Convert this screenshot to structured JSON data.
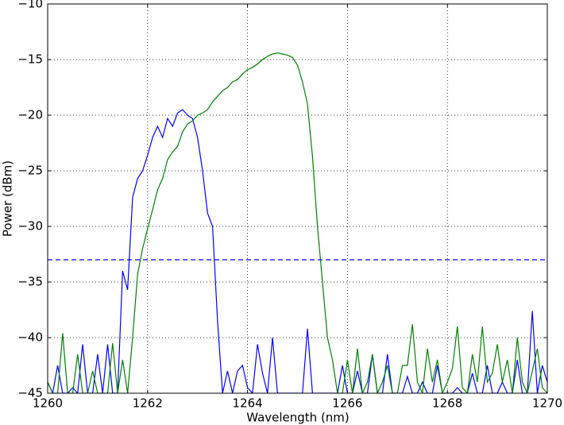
{
  "chart_data": {
    "type": "line",
    "xlabel": "Wavelength (nm)",
    "ylabel": "Power (dBm)",
    "x": [
      1260,
      1260.1,
      1260.2,
      1260.3,
      1260.4,
      1260.5,
      1260.6,
      1260.7,
      1260.8,
      1260.9,
      1261,
      1261.1,
      1261.2,
      1261.3,
      1261.4,
      1261.5,
      1261.6,
      1261.7,
      1261.8,
      1261.9,
      1262,
      1262.1,
      1262.2,
      1262.3,
      1262.4,
      1262.5,
      1262.6,
      1262.7,
      1262.8,
      1262.9,
      1263,
      1263.1,
      1263.2,
      1263.3,
      1263.4,
      1263.5,
      1263.6,
      1263.7,
      1263.8,
      1263.9,
      1264,
      1264.1,
      1264.2,
      1264.3,
      1264.4,
      1264.5,
      1264.6,
      1264.7,
      1264.8,
      1264.9,
      1265,
      1265.1,
      1265.2,
      1265.3,
      1265.4,
      1265.5,
      1265.6,
      1265.7,
      1265.8,
      1265.9,
      1266,
      1266.1,
      1266.2,
      1266.3,
      1266.4,
      1266.5,
      1266.6,
      1266.7,
      1266.8,
      1266.9,
      1267,
      1267.1,
      1267.2,
      1267.3,
      1267.4,
      1267.5,
      1267.6,
      1267.7,
      1267.8,
      1267.9,
      1268,
      1268.1,
      1268.2,
      1268.3,
      1268.4,
      1268.5,
      1268.6,
      1268.7,
      1268.8,
      1268.9,
      1269,
      1269.1,
      1269.2,
      1269.3,
      1269.4,
      1269.5,
      1269.6,
      1269.7,
      1269.8,
      1269.9,
      1270
    ],
    "series": [
      {
        "color": "#0000ff",
        "values": [
          -44,
          -45,
          -42.5,
          -45,
          -45,
          -44.5,
          -45,
          -40.6,
          -45,
          -45,
          -41.5,
          -45,
          -40.6,
          -45,
          -45,
          -34,
          -35.7,
          -27.4,
          -25.7,
          -25,
          -23.6,
          -22,
          -21,
          -22,
          -20.3,
          -21,
          -19.8,
          -19.5,
          -20,
          -20.3,
          -22,
          -25,
          -28.8,
          -30,
          -38.5,
          -45,
          -43,
          -45,
          -43,
          -42.5,
          -44.5,
          -45,
          -40.6,
          -43.2,
          -45,
          -40,
          -45,
          -45,
          -45,
          -45,
          -45,
          -45,
          -39.2,
          -45,
          -45,
          -45,
          -45,
          -45,
          -45,
          -42.5,
          -45,
          -45,
          -43,
          -45,
          -45,
          -41.5,
          -45,
          -45,
          -41.5,
          -45,
          -45,
          -45,
          -43.5,
          -45,
          -45,
          -44,
          -45,
          -45,
          -42.5,
          -45,
          -45,
          -45,
          -44.5,
          -45,
          -45,
          -43.2,
          -45,
          -45,
          -42.5,
          -45,
          -45,
          -44,
          -45,
          -45,
          -42,
          -45,
          -45,
          -37.6,
          -45,
          -42.5,
          -44
        ]
      },
      {
        "color": "#008000",
        "values": [
          -44,
          -45,
          -45,
          -39.6,
          -45,
          -45,
          -41.5,
          -45,
          -45,
          -43,
          -45,
          -45,
          -45,
          -40.5,
          -45,
          -42,
          -45,
          -40,
          -34.3,
          -32,
          -30.2,
          -28.5,
          -26.7,
          -25.7,
          -24,
          -23.3,
          -22.8,
          -21.5,
          -20.8,
          -20.5,
          -20,
          -19.8,
          -19.5,
          -18.8,
          -18.3,
          -17.8,
          -17.5,
          -17,
          -16.8,
          -16.3,
          -15.9,
          -15.7,
          -15.4,
          -15,
          -14.7,
          -14.5,
          -14.4,
          -14.5,
          -14.6,
          -14.8,
          -15.5,
          -17,
          -19,
          -23.7,
          -30,
          -35,
          -40,
          -42,
          -45,
          -45,
          -42,
          -45,
          -41,
          -45,
          -44,
          -41.5,
          -45,
          -44,
          -42.5,
          -45,
          -45,
          -42.5,
          -42.5,
          -38.8,
          -44,
          -45,
          -41,
          -44,
          -42,
          -45,
          -44,
          -42.8,
          -39,
          -44.5,
          -45,
          -41.5,
          -44,
          -39,
          -44,
          -43.2,
          -40.6,
          -44,
          -42,
          -45,
          -40,
          -44,
          -45,
          -43,
          -41,
          -44.5,
          -45
        ]
      }
    ],
    "hlines": [
      {
        "y": -33,
        "color": "#0000ff",
        "style": "dashed"
      }
    ],
    "xlim": [
      1260,
      1270
    ],
    "xticks": [
      1260,
      1262,
      1264,
      1266,
      1268,
      1270
    ],
    "ylim": [
      -45,
      -10
    ],
    "yticks": [
      {
        "value": -45,
        "label": "−45"
      },
      {
        "value": -40,
        "label": "−40"
      },
      {
        "value": -35,
        "label": "−35"
      },
      {
        "value": -30,
        "label": "−30"
      },
      {
        "value": -25,
        "label": "−25"
      },
      {
        "value": -20,
        "label": "−20"
      },
      {
        "value": -15,
        "label": "−15"
      },
      {
        "value": -10,
        "label": "−10"
      }
    ],
    "grid": true
  }
}
